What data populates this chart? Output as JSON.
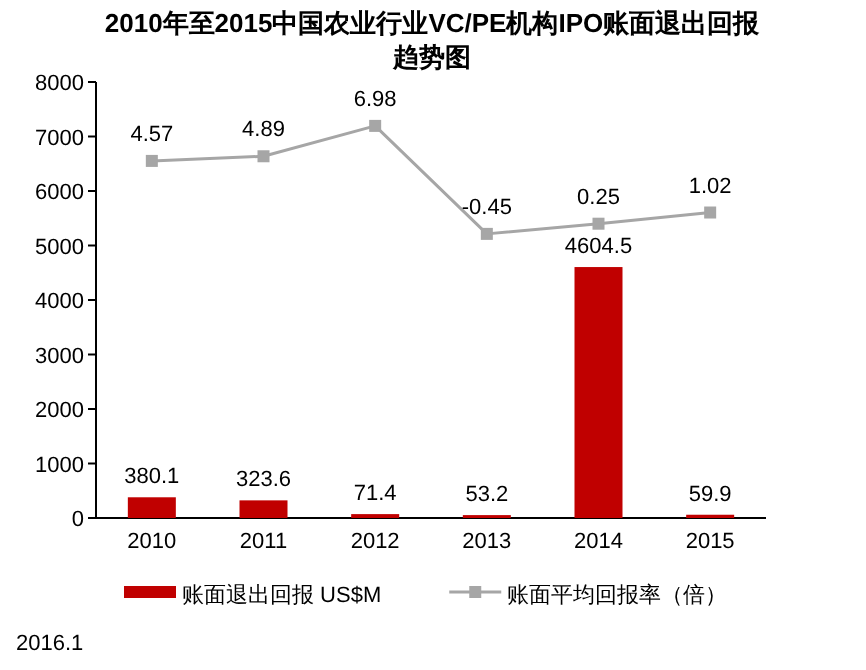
{
  "chart_data": {
    "type": "bar",
    "title": "2010年至2015中国农业行业VC/PE机构IPO账面退出回报趋势图",
    "categories": [
      "2010",
      "2011",
      "2012",
      "2013",
      "2014",
      "2015"
    ],
    "series": [
      {
        "name": "账面退出回报 US$M",
        "color": "#c00000",
        "values": [
          380.1,
          323.6,
          71.4,
          53.2,
          4604.5,
          59.9
        ]
      },
      {
        "name": "账面平均回报率（倍）",
        "type": "line",
        "axis": "y2",
        "marker": "square",
        "color": "#a6a6a6",
        "values": [
          4.57,
          4.89,
          6.98,
          -0.45,
          0.25,
          1.02
        ]
      }
    ],
    "ylim": [
      0,
      8000
    ],
    "yticks": [
      0,
      1000,
      2000,
      3000,
      4000,
      5000,
      6000,
      7000,
      8000
    ],
    "y2lim": [
      -20,
      10
    ],
    "data_labels": true,
    "legend": "bottom",
    "annotations": [
      "2016.1"
    ]
  }
}
